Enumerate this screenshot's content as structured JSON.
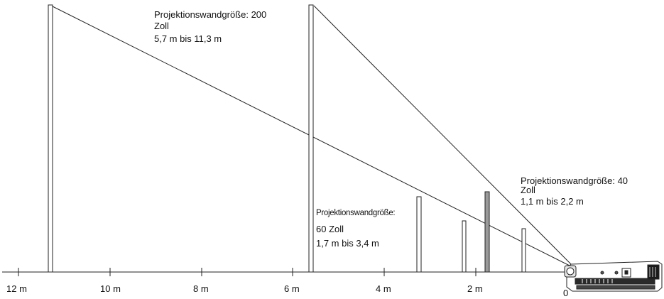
{
  "diagram": {
    "distance_axis": {
      "tick_labels": [
        "12 m",
        "10 m",
        "8 m",
        "6 m",
        "4 m",
        "2 m"
      ],
      "origin_label": "0"
    },
    "annotations": {
      "size_200": {
        "line1": "Projektionswandgröße: 200",
        "line2": "Zoll",
        "line3": "5,7 m bis 11,3 m"
      },
      "size_60": {
        "line1": "Projektionswandgröße:",
        "line2": "60 Zoll",
        "line3": "1,7 m bis 3,4 m"
      },
      "size_40": {
        "line1": "Projektionswandgröße: 40",
        "line2": "Zoll",
        "line3": "1,1 m bis 2,2 m"
      }
    },
    "line_color": "#222222",
    "screen_fill": "#ffffff",
    "screen_fill_highlight": "#9a9a9a",
    "projector_icon": "projector-icon"
  }
}
